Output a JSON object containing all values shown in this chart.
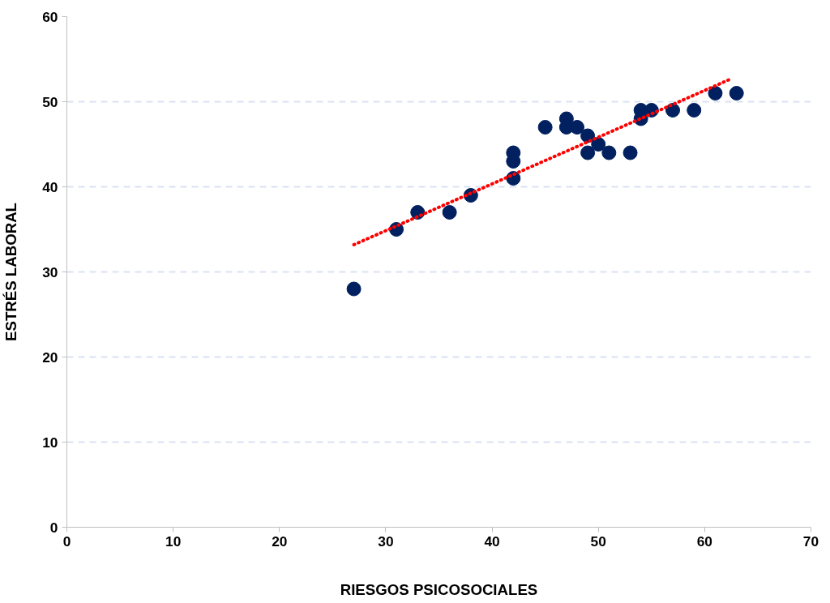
{
  "chart_data": {
    "type": "scatter",
    "xlabel": "RIESGOS PSICOSOCIALES",
    "ylabel": "ESTRÉS LABORAL",
    "xlim": [
      0,
      70
    ],
    "xticks": [
      0,
      10,
      20,
      30,
      40,
      50,
      60,
      70
    ],
    "ylim": [
      0,
      60
    ],
    "yticks": [
      0,
      10,
      20,
      30,
      40,
      50,
      60
    ],
    "grid": "y",
    "series": [
      {
        "marker": "circle",
        "color": "#002060",
        "x": [
          27,
          31,
          33,
          36,
          38,
          42,
          42,
          42,
          45,
          47,
          47,
          48,
          49,
          49,
          50,
          51,
          53,
          54,
          54,
          55,
          57,
          59,
          61,
          63
        ],
        "values": [
          28,
          35,
          37,
          37,
          39,
          44,
          43,
          41,
          47,
          48,
          47,
          47,
          46,
          44,
          45,
          44,
          44,
          49,
          48,
          49,
          49,
          49,
          51,
          51
        ]
      },
      {
        "type": "line",
        "color": "#ff0000",
        "line_style": "dotted",
        "x": [
          27,
          62.5
        ],
        "values": [
          33.2,
          52.7
        ]
      }
    ]
  }
}
